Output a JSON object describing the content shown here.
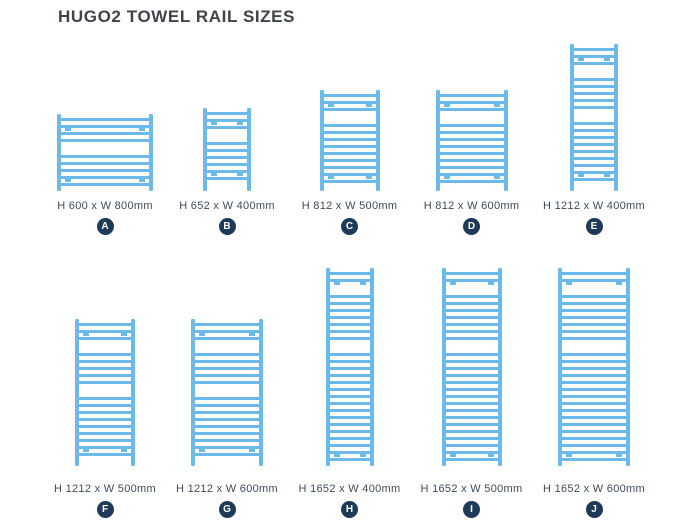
{
  "title": "HUGO2 TOWEL RAIL SIZES",
  "colors": {
    "rail": "#6db9e9",
    "badge_bg": "#1e3a58",
    "badge_text": "#ffffff",
    "label_text": "#3e4b59",
    "title_text": "#3f444a"
  },
  "rails": [
    {
      "letter": "A",
      "label": "H 600 x W 800mm",
      "height_mm": 600,
      "width_mm": 800,
      "gap_fractions": [
        0.38
      ]
    },
    {
      "letter": "B",
      "label": "H 652 x W 400mm",
      "height_mm": 652,
      "width_mm": 400,
      "gap_fractions": [
        0.3
      ]
    },
    {
      "letter": "C",
      "label": "H 812 x W 500mm",
      "height_mm": 812,
      "width_mm": 500,
      "gap_fractions": [
        0.21
      ]
    },
    {
      "letter": "D",
      "label": "H 812 x W 600mm",
      "height_mm": 812,
      "width_mm": 600,
      "gap_fractions": [
        0.21
      ]
    },
    {
      "letter": "E",
      "label": "H 1212 x W 400mm",
      "height_mm": 1212,
      "width_mm": 400,
      "gap_fractions": [
        0.15,
        0.45
      ]
    },
    {
      "letter": "F",
      "label": "H 1212 x W 500mm",
      "height_mm": 1212,
      "width_mm": 500,
      "gap_fractions": [
        0.15,
        0.45
      ]
    },
    {
      "letter": "G",
      "label": "H 1212 x W 600mm",
      "height_mm": 1212,
      "width_mm": 600,
      "gap_fractions": [
        0.15,
        0.45
      ]
    },
    {
      "letter": "H",
      "label": "H 1652 x W 400mm",
      "height_mm": 1652,
      "width_mm": 400,
      "gap_fractions": [
        0.07,
        0.36
      ]
    },
    {
      "letter": "I",
      "label": "H 1652 x W 500mm",
      "height_mm": 1652,
      "width_mm": 500,
      "gap_fractions": [
        0.07,
        0.36
      ]
    },
    {
      "letter": "J",
      "label": "H 1652 x W 600mm",
      "height_mm": 1652,
      "width_mm": 600,
      "gap_fractions": [
        0.07,
        0.36
      ]
    }
  ]
}
